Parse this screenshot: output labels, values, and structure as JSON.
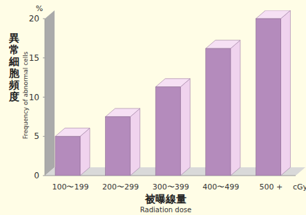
{
  "chart_data": {
    "type": "bar",
    "ylabel": "異常細胞頻度",
    "ylabel_en": "Frequency of abnormal cells",
    "xlabel": "被曝線量",
    "xlabel_en": "Radiation dose",
    "y_unit": "%",
    "x_unit": "cGy",
    "categories": [
      "100〜199",
      "200〜299",
      "300〜399",
      "400〜499",
      "500 +"
    ],
    "values": [
      5.0,
      7.5,
      11.3,
      16.2,
      20.0
    ],
    "color": "#b48bbc",
    "ylim": [
      0,
      20
    ],
    "yticks": [
      0,
      5,
      10,
      15,
      20
    ],
    "grid": false
  }
}
